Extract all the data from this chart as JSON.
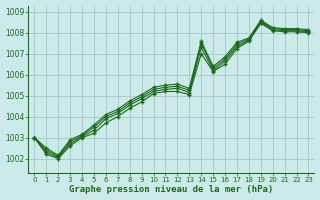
{
  "title": "Graphe pression niveau de la mer (hPa)",
  "bg_color": "#cceaea",
  "grid_color": "#aacccc",
  "line_color": "#1a6b1a",
  "xlim": [
    -0.5,
    23.5
  ],
  "ylim": [
    1001.3,
    1009.3
  ],
  "xticks": [
    0,
    1,
    2,
    3,
    4,
    5,
    6,
    7,
    8,
    9,
    10,
    11,
    12,
    13,
    14,
    15,
    16,
    17,
    18,
    19,
    20,
    21,
    22,
    23
  ],
  "yticks": [
    1002,
    1003,
    1004,
    1005,
    1006,
    1007,
    1008,
    1009
  ],
  "series": [
    [
      1003.0,
      1002.2,
      1002.0,
      1002.6,
      1003.0,
      1003.2,
      1003.7,
      1004.0,
      1004.4,
      1004.7,
      1005.1,
      1005.2,
      1005.2,
      1005.05,
      1007.0,
      1006.15,
      1006.5,
      1007.25,
      1007.6,
      1008.45,
      1008.1,
      1008.05,
      1008.05,
      1008.0
    ],
    [
      1003.0,
      1002.3,
      1002.05,
      1002.7,
      1003.05,
      1003.35,
      1003.9,
      1004.15,
      1004.55,
      1004.85,
      1005.2,
      1005.3,
      1005.35,
      1005.15,
      1007.3,
      1006.2,
      1006.65,
      1007.35,
      1007.65,
      1008.5,
      1008.15,
      1008.1,
      1008.1,
      1008.05
    ],
    [
      1003.0,
      1002.4,
      1002.1,
      1002.8,
      1003.1,
      1003.5,
      1004.0,
      1004.25,
      1004.65,
      1004.95,
      1005.3,
      1005.4,
      1005.45,
      1005.25,
      1007.5,
      1006.3,
      1006.75,
      1007.45,
      1007.7,
      1008.55,
      1008.2,
      1008.15,
      1008.15,
      1008.1
    ],
    [
      1003.0,
      1002.5,
      1002.15,
      1002.9,
      1003.15,
      1003.6,
      1004.1,
      1004.35,
      1004.75,
      1005.05,
      1005.4,
      1005.5,
      1005.55,
      1005.35,
      1007.6,
      1006.4,
      1006.85,
      1007.55,
      1007.75,
      1008.6,
      1008.25,
      1008.2,
      1008.2,
      1008.15
    ]
  ]
}
